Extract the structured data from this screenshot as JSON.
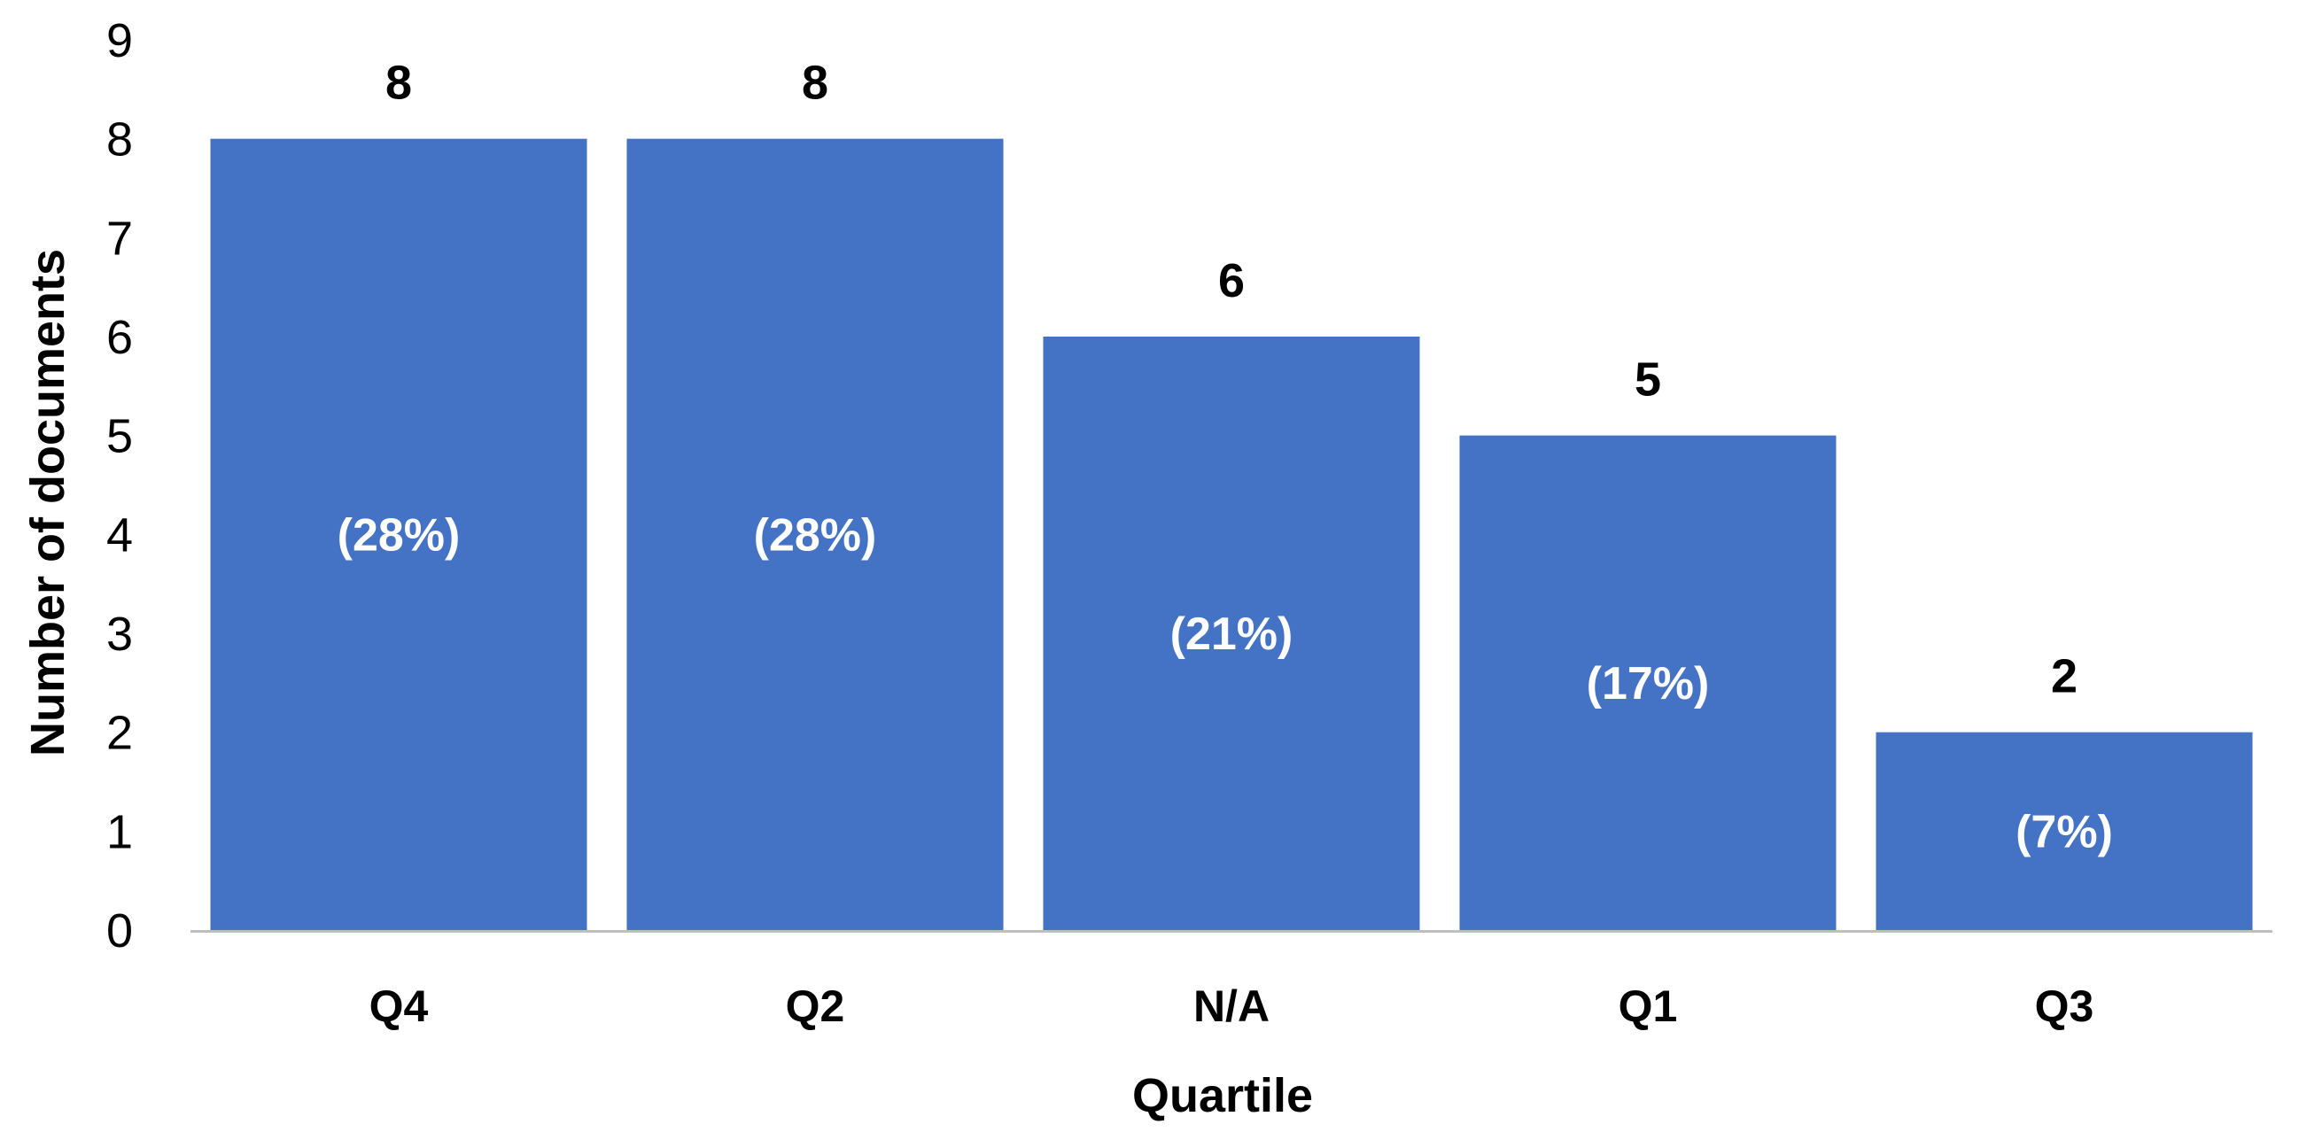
{
  "chart_data": {
    "type": "bar",
    "categories": [
      "Q4",
      "Q2",
      "N/A",
      "Q1",
      "Q3"
    ],
    "values": [
      8,
      8,
      6,
      5,
      2
    ],
    "percent_labels": [
      "(28%)",
      "(28%)",
      "(21%)",
      "(17%)",
      "(7%)"
    ],
    "title": "",
    "xlabel": "Quartile",
    "ylabel": "Number of documents",
    "ylim": [
      0,
      9
    ],
    "yticks": [
      "0",
      "1",
      "2",
      "3",
      "4",
      "5",
      "6",
      "7",
      "8",
      "9"
    ],
    "grid": false,
    "legend": "none",
    "bar_color": "#4472C4",
    "axis_color": "#BFBFBF"
  }
}
